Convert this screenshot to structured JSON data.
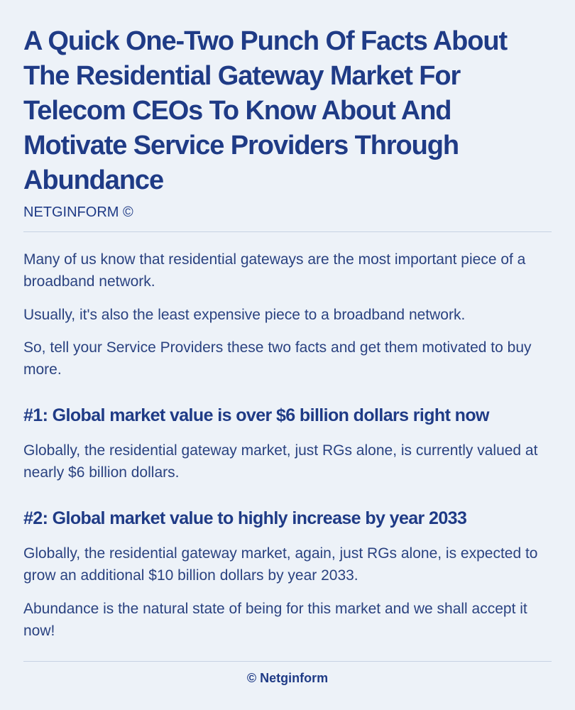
{
  "article": {
    "title": "A Quick One-Two Punch Of Facts About The Residential Gateway Market For Telecom CEOs To Know About And Motivate Service Providers Through Abundance",
    "byline": "NETGINFORM ©",
    "intro": [
      "Many of us know that residential gateways are the most important piece of a broadband network.",
      "Usually, it's also the least expensive piece to a broadband network.",
      "So, tell your Service Providers these two facts and get them motivated to buy more."
    ],
    "sections": [
      {
        "heading": "#1: Global market value is over $6 billion dollars right now",
        "paragraphs": [
          "Globally, the residential gateway market, just RGs alone, is currently valued at nearly $6 billion dollars."
        ]
      },
      {
        "heading": "#2: Global market value to highly increase by year 2033",
        "paragraphs": [
          "Globally, the residential gateway market, again, just RGs alone, is expected to grow an additional $10 billion dollars by year 2033.",
          "Abundance is the natural state of being for this market and we shall accept it now!"
        ]
      }
    ]
  },
  "footer": {
    "text": "© Netginform"
  },
  "colors": {
    "background": "#edf2f8",
    "text": "#1f3b86",
    "rule": "#c7d2e3"
  }
}
